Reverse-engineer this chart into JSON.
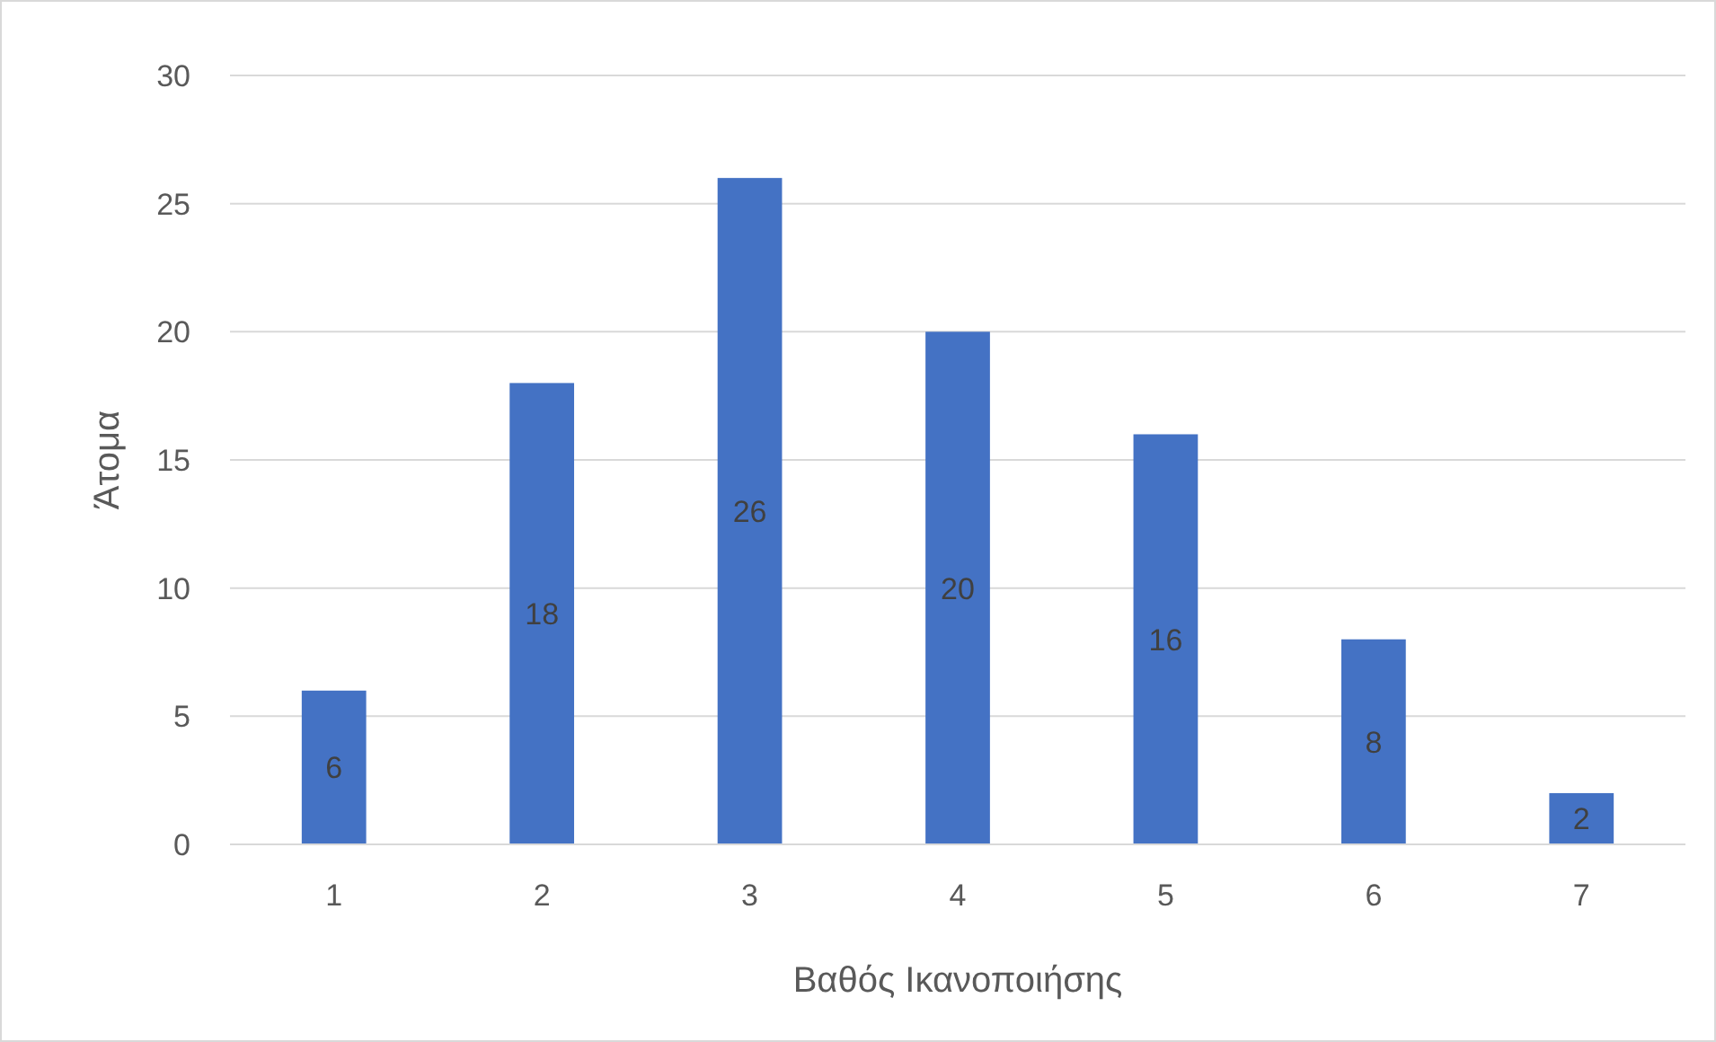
{
  "chart_data": {
    "type": "bar",
    "xlabel": "Βαθός Ικανοποιήσης",
    "ylabel": "Άτομα",
    "categories": [
      "1",
      "2",
      "3",
      "4",
      "5",
      "6",
      "7"
    ],
    "values": [
      6,
      18,
      26,
      20,
      16,
      8,
      2
    ],
    "color": "#4472c4",
    "ylim": [
      0,
      30
    ],
    "yticks": [
      0,
      5,
      10,
      15,
      20,
      25,
      30
    ],
    "grid": "y",
    "data_labels": true
  }
}
